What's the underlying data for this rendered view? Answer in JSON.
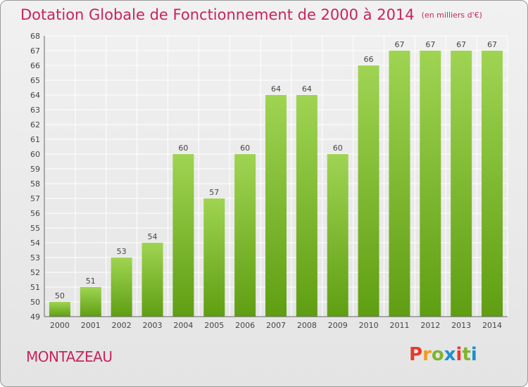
{
  "header": {
    "title": "Dotation Globale de Fonctionnement de 2000 à 2014",
    "subtitle": "(en milliers d'€)"
  },
  "footer": {
    "commune": "MONTAZEAU",
    "brand": "Proxiti",
    "brand_colors": [
      "#e8392b",
      "#f39a1e",
      "#7fb52f",
      "#1d8fd1",
      "#e8392b",
      "#7fb52f",
      "#1d8fd1"
    ]
  },
  "colors": {
    "bar_top": "#9fd452",
    "bar_bottom": "#5f9e12",
    "accent": "#c8245a",
    "grid": "#ffffff"
  },
  "chart_data": {
    "type": "bar",
    "categories": [
      "2000",
      "2001",
      "2002",
      "2003",
      "2004",
      "2005",
      "2006",
      "2007",
      "2008",
      "2009",
      "2010",
      "2011",
      "2012",
      "2013",
      "2014"
    ],
    "values": [
      50,
      51,
      53,
      54,
      60,
      57,
      60,
      64,
      64,
      60,
      66,
      67,
      67,
      67,
      67
    ],
    "ylim": [
      49,
      68
    ],
    "yticks": [
      49,
      50,
      51,
      52,
      53,
      54,
      55,
      56,
      57,
      58,
      59,
      60,
      61,
      62,
      63,
      64,
      65,
      66,
      67,
      68
    ],
    "grid": true,
    "xlabel": "",
    "ylabel": ""
  }
}
